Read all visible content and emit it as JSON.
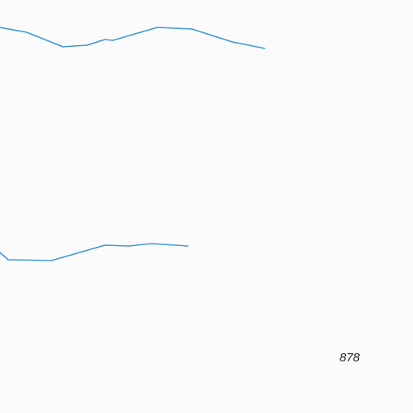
{
  "map": {
    "background_color": "#fbfbfb",
    "line_color": "#3d97d9",
    "label_color": "#1e1e1e",
    "labels": {
      "elevation": "878"
    }
  }
}
